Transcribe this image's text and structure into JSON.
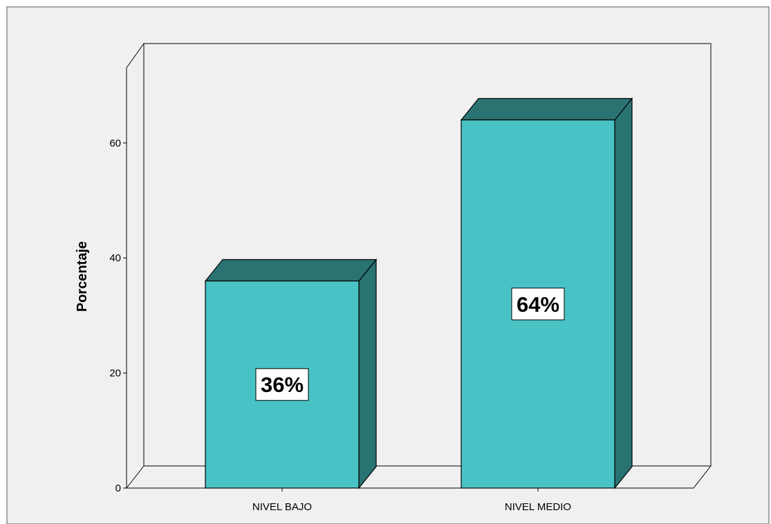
{
  "chart_data": {
    "type": "bar",
    "categories": [
      "NIVEL BAJO",
      "NIVEL MEDIO"
    ],
    "values": [
      36,
      64
    ],
    "data_labels": [
      "36%",
      "64%"
    ],
    "ylabel": "Porcentaje",
    "xlabel": "",
    "ylim": [
      0,
      70
    ],
    "yticks": [
      0,
      20,
      40,
      60
    ],
    "ytick_labels": [
      "0",
      "20",
      "40",
      "60"
    ],
    "grid": false,
    "style": "3d-bar",
    "colors": {
      "background": "#f0f0f0",
      "bar_front": "#48c2c5",
      "bar_side": "#2a7373",
      "bar_top": "#2a7373",
      "outline": "#000000"
    }
  }
}
